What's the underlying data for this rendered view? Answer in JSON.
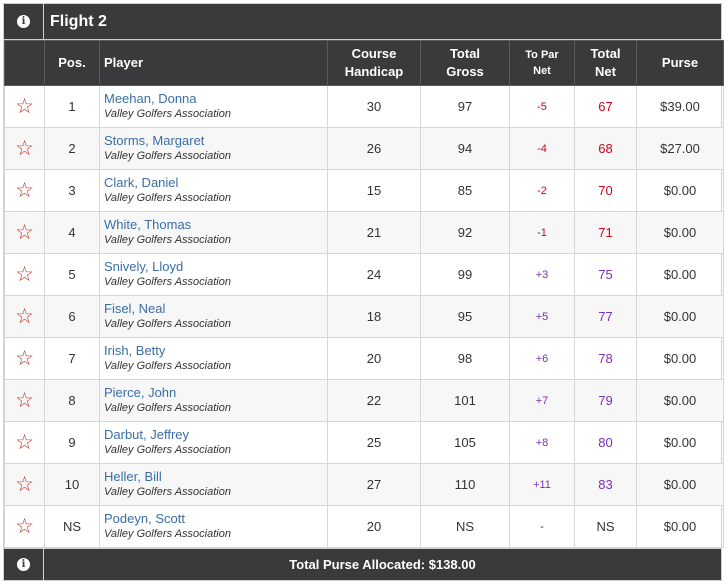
{
  "flight_title": "Flight 2",
  "headers": {
    "pos": "Pos.",
    "player": "Player",
    "course_handicap_1": "Course",
    "course_handicap_2": "Handicap",
    "total_gross_1": "Total",
    "total_gross_2": "Gross",
    "to_par_1": "To Par",
    "to_par_2": "Net",
    "total_net_1": "Total",
    "total_net_2": "Net",
    "purse": "Purse"
  },
  "rows": [
    {
      "pos": "1",
      "name": "Meehan, Donna",
      "club": "Valley Golfers Association",
      "handicap": "30",
      "gross": "97",
      "to_par": "-5",
      "net": "67",
      "purse": "$39.00",
      "tone": "neg"
    },
    {
      "pos": "2",
      "name": "Storms, Margaret",
      "club": "Valley Golfers Association",
      "handicap": "26",
      "gross": "94",
      "to_par": "-4",
      "net": "68",
      "purse": "$27.00",
      "tone": "neg"
    },
    {
      "pos": "3",
      "name": "Clark, Daniel",
      "club": "Valley Golfers Association",
      "handicap": "15",
      "gross": "85",
      "to_par": "-2",
      "net": "70",
      "purse": "$0.00",
      "tone": "neg"
    },
    {
      "pos": "4",
      "name": "White, Thomas",
      "club": "Valley Golfers Association",
      "handicap": "21",
      "gross": "92",
      "to_par": "-1",
      "net": "71",
      "purse": "$0.00",
      "tone": "neg"
    },
    {
      "pos": "5",
      "name": "Snively, Lloyd",
      "club": "Valley Golfers Association",
      "handicap": "24",
      "gross": "99",
      "to_par": "+3",
      "net": "75",
      "purse": "$0.00",
      "tone": "pos"
    },
    {
      "pos": "6",
      "name": "Fisel, Neal",
      "club": "Valley Golfers Association",
      "handicap": "18",
      "gross": "95",
      "to_par": "+5",
      "net": "77",
      "purse": "$0.00",
      "tone": "pos"
    },
    {
      "pos": "7",
      "name": "Irish, Betty",
      "club": "Valley Golfers Association",
      "handicap": "20",
      "gross": "98",
      "to_par": "+6",
      "net": "78",
      "purse": "$0.00",
      "tone": "pos"
    },
    {
      "pos": "8",
      "name": "Pierce, John",
      "club": "Valley Golfers Association",
      "handicap": "22",
      "gross": "101",
      "to_par": "+7",
      "net": "79",
      "purse": "$0.00",
      "tone": "pos"
    },
    {
      "pos": "9",
      "name": "Darbut, Jeffrey",
      "club": "Valley Golfers Association",
      "handicap": "25",
      "gross": "105",
      "to_par": "+8",
      "net": "80",
      "purse": "$0.00",
      "tone": "pos"
    },
    {
      "pos": "10",
      "name": "Heller, Bill",
      "club": "Valley Golfers Association",
      "handicap": "27",
      "gross": "110",
      "to_par": "+11",
      "net": "83",
      "purse": "$0.00",
      "tone": "pos"
    },
    {
      "pos": "NS",
      "name": "Podeyn, Scott",
      "club": "Valley Golfers Association",
      "handicap": "20",
      "gross": "NS",
      "to_par": "-",
      "net": "NS",
      "purse": "$0.00",
      "tone": "neutral"
    }
  ],
  "footer_text": "Total Purse Allocated: $138.00",
  "icons": {
    "favorite": "star-outline-icon",
    "info": "info-icon"
  },
  "colors": {
    "header_bg": "#3a3a3c",
    "name_link": "#3a6ea5",
    "under_par": "#d0021b",
    "over_par": "#7b2fb5",
    "star": "#c0392b"
  }
}
